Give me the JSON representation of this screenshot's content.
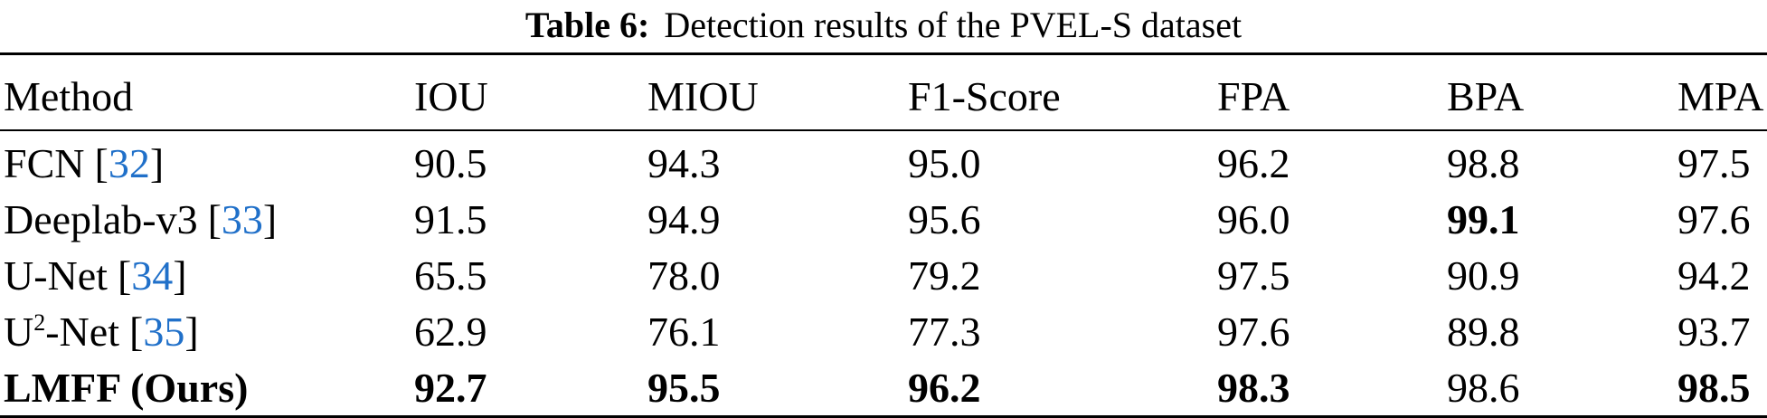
{
  "caption": {
    "label": "Table 6:",
    "text": "Detection results of the PVEL-S dataset"
  },
  "colors": {
    "text": "#000000",
    "citation_link": "#2070c9",
    "rule": "#000000",
    "background": "#ffffff"
  },
  "citation_brackets": {
    "open": "[",
    "close": "]"
  },
  "table": {
    "headers": [
      "Method",
      "IOU",
      "MIOU",
      "F1-Score",
      "FPA",
      "BPA",
      "MPA"
    ],
    "rows": [
      {
        "name_pre": "FCN",
        "name_sup": "",
        "name_post": "",
        "cite": "32",
        "values": [
          "90.5",
          "94.3",
          "95.0",
          "96.2",
          "98.8",
          "97.5"
        ]
      },
      {
        "name_pre": "Deeplab-v3",
        "name_sup": "",
        "name_post": "",
        "cite": "33",
        "values": [
          "91.5",
          "94.9",
          "95.6",
          "96.0",
          "99.1",
          "97.6"
        ]
      },
      {
        "name_pre": "U-Net",
        "name_sup": "",
        "name_post": "",
        "cite": "34",
        "values": [
          "65.5",
          "78.0",
          "79.2",
          "97.5",
          "90.9",
          "94.2"
        ]
      },
      {
        "name_pre": "U",
        "name_sup": "2",
        "name_post": "-Net",
        "cite": "35",
        "values": [
          "62.9",
          "76.1",
          "77.3",
          "97.6",
          "89.8",
          "93.7"
        ]
      },
      {
        "name_pre": "LMFF (Ours)",
        "name_sup": "",
        "name_post": "",
        "cite": "",
        "values": [
          "92.7",
          "95.5",
          "96.2",
          "98.3",
          "98.6",
          "98.5"
        ]
      }
    ]
  }
}
